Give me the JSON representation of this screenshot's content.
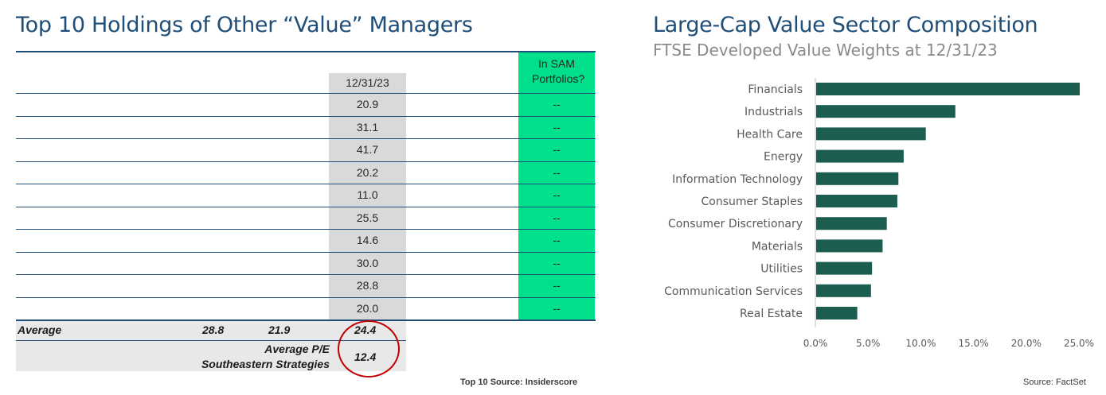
{
  "left": {
    "title": "Top 10 Holdings of Other “Value” Managers",
    "col_header_date": "12/31/23",
    "col_header_sam": "In SAM Portfolios?",
    "rows": [
      {
        "pe": "20.9",
        "in_sam": "--"
      },
      {
        "pe": "31.1",
        "in_sam": "--"
      },
      {
        "pe": "41.7",
        "in_sam": "--"
      },
      {
        "pe": "20.2",
        "in_sam": "--"
      },
      {
        "pe": "11.0",
        "in_sam": "--"
      },
      {
        "pe": "25.5",
        "in_sam": "--"
      },
      {
        "pe": "14.6",
        "in_sam": "--"
      },
      {
        "pe": "30.0",
        "in_sam": "--"
      },
      {
        "pe": "28.8",
        "in_sam": "--"
      },
      {
        "pe": "20.0",
        "in_sam": "--"
      }
    ],
    "average_label": "Average",
    "average_values": [
      "28.8",
      "21.9",
      "24.4"
    ],
    "sam_pe_label_line1": "Average P/E",
    "sam_pe_label_line2": "Southeastern Strategies",
    "sam_pe_value": "12.4",
    "source": "Top 10 Source: Insiderscore",
    "colors": {
      "header_rule": "#1f4e79",
      "grey_col": "#d9d9d9",
      "green_col": "#00e08a",
      "highlight_circle": "#c00000"
    }
  },
  "right": {
    "title": "Large-Cap Value Sector Composition",
    "subtitle": "FTSE Developed Value Weights at 12/31/23",
    "source": "Source: FactSet",
    "bar_color": "#1b5e4f"
  },
  "chart_data": {
    "type": "bar",
    "orientation": "horizontal",
    "title": "Large-Cap Value Sector Composition",
    "subtitle": "FTSE Developed Value Weights at 12/31/23",
    "categories": [
      "Financials",
      "Industrials",
      "Health Care",
      "Energy",
      "Information Technology",
      "Consumer Staples",
      "Consumer Discretionary",
      "Materials",
      "Utilities",
      "Communication Services",
      "Real Estate"
    ],
    "values": [
      25.0,
      13.2,
      10.4,
      8.3,
      7.8,
      7.7,
      6.7,
      6.3,
      5.3,
      5.2,
      3.9
    ],
    "xlim": [
      0,
      25
    ],
    "xticks": [
      "0.0%",
      "5.0%",
      "10.0%",
      "15.0%",
      "20.0%",
      "25.0%"
    ],
    "xlabel": "",
    "ylabel": "",
    "grid": false,
    "legend": "none"
  }
}
